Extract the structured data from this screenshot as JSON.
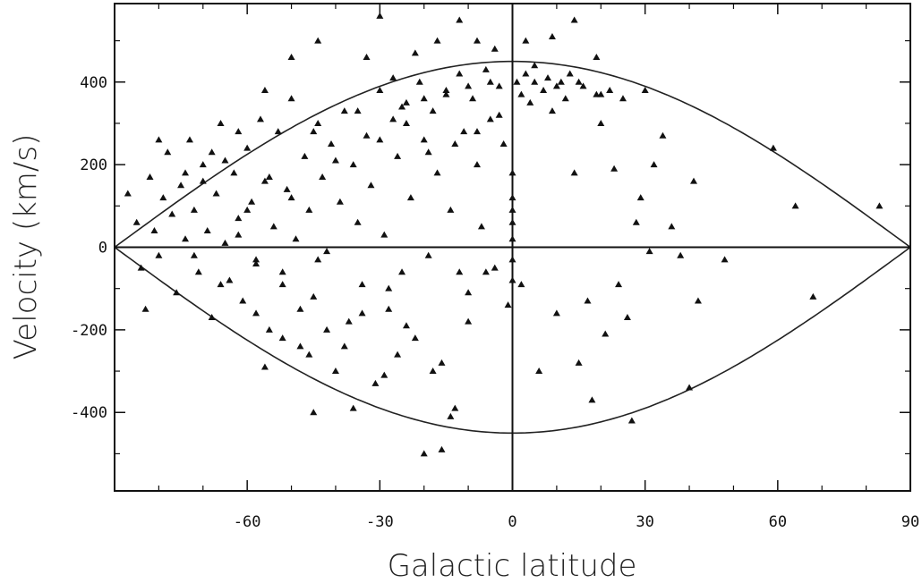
{
  "chart_data": {
    "type": "scatter",
    "xlabel": "Galactic latitude",
    "ylabel": "Velocity (km/s)",
    "xlim": [
      -90,
      90
    ],
    "ylim": [
      -590,
      590
    ],
    "x_ticks": [
      -60,
      -30,
      0,
      30,
      60,
      90
    ],
    "x_tick_labels": [
      "-60",
      "-30",
      "0",
      "30",
      "60",
      "90"
    ],
    "y_ticks": [
      -400,
      -200,
      0,
      200,
      400
    ],
    "y_tick_labels": [
      "-400",
      "-200",
      "0",
      "200",
      "400"
    ],
    "grid": false,
    "marker": "triangle",
    "color": "#111111",
    "envelope": {
      "amplitude": 450,
      "description_shown": "curves +/- V cos(b)"
    },
    "reference_lines": {
      "x": 0,
      "y": 0
    },
    "points": [
      [
        -87,
        130
      ],
      [
        -85,
        60
      ],
      [
        -84,
        -50
      ],
      [
        -83,
        -150
      ],
      [
        -82,
        170
      ],
      [
        -81,
        40
      ],
      [
        -80,
        -20
      ],
      [
        -79,
        120
      ],
      [
        -78,
        230
      ],
      [
        -77,
        80
      ],
      [
        -76,
        -110
      ],
      [
        -75,
        150
      ],
      [
        -74,
        20
      ],
      [
        -73,
        260
      ],
      [
        -72,
        90
      ],
      [
        -71,
        -60
      ],
      [
        -70,
        200
      ],
      [
        -69,
        40
      ],
      [
        -68,
        -170
      ],
      [
        -67,
        130
      ],
      [
        -66,
        300
      ],
      [
        -65,
        10
      ],
      [
        -64,
        -80
      ],
      [
        -63,
        180
      ],
      [
        -62,
        70
      ],
      [
        -61,
        -130
      ],
      [
        -60,
        240
      ],
      [
        -59,
        110
      ],
      [
        -58,
        -30
      ],
      [
        -57,
        310
      ],
      [
        -56,
        160
      ],
      [
        -55,
        -200
      ],
      [
        -54,
        50
      ],
      [
        -53,
        280
      ],
      [
        -52,
        -60
      ],
      [
        -51,
        140
      ],
      [
        -50,
        360
      ],
      [
        -49,
        20
      ],
      [
        -48,
        -240
      ],
      [
        -47,
        220
      ],
      [
        -46,
        90
      ],
      [
        -45,
        -120
      ],
      [
        -44,
        300
      ],
      [
        -43,
        170
      ],
      [
        -42,
        -10
      ],
      [
        -41,
        250
      ],
      [
        -40,
        -300
      ],
      [
        -39,
        110
      ],
      [
        -38,
        330
      ],
      [
        -37,
        -180
      ],
      [
        -36,
        200
      ],
      [
        -35,
        60
      ],
      [
        -34,
        -90
      ],
      [
        -33,
        270
      ],
      [
        -32,
        150
      ],
      [
        -31,
        -330
      ],
      [
        -30,
        380
      ],
      [
        -29,
        30
      ],
      [
        -28,
        -150
      ],
      [
        -27,
        310
      ],
      [
        -26,
        220
      ],
      [
        -25,
        -60
      ],
      [
        -24,
        350
      ],
      [
        -23,
        120
      ],
      [
        -22,
        -220
      ],
      [
        -21,
        400
      ],
      [
        -20,
        260
      ],
      [
        -19,
        -20
      ],
      [
        -18,
        330
      ],
      [
        -17,
        180
      ],
      [
        -16,
        -280
      ],
      [
        -15,
        370
      ],
      [
        -14,
        90
      ],
      [
        -13,
        -390
      ],
      [
        -12,
        420
      ],
      [
        -11,
        280
      ],
      [
        -10,
        -110
      ],
      [
        -9,
        360
      ],
      [
        -8,
        200
      ],
      [
        -7,
        50
      ],
      [
        -6,
        430
      ],
      [
        -5,
        310
      ],
      [
        -4,
        -50
      ],
      [
        -3,
        390
      ],
      [
        -2,
        250
      ],
      [
        -1,
        -140
      ],
      [
        0,
        120
      ],
      [
        0,
        60
      ],
      [
        0,
        20
      ],
      [
        0,
        -30
      ],
      [
        0,
        -80
      ],
      [
        0,
        180
      ],
      [
        0,
        90
      ],
      [
        1,
        400
      ],
      [
        2,
        370
      ],
      [
        3,
        420
      ],
      [
        4,
        350
      ],
      [
        5,
        440
      ],
      [
        6,
        -300
      ],
      [
        7,
        380
      ],
      [
        8,
        410
      ],
      [
        9,
        330
      ],
      [
        10,
        -160
      ],
      [
        11,
        400
      ],
      [
        12,
        360
      ],
      [
        13,
        420
      ],
      [
        14,
        180
      ],
      [
        15,
        -280
      ],
      [
        16,
        390
      ],
      [
        17,
        -130
      ],
      [
        18,
        -370
      ],
      [
        19,
        370
      ],
      [
        20,
        300
      ],
      [
        21,
        -210
      ],
      [
        22,
        380
      ],
      [
        23,
        190
      ],
      [
        24,
        -90
      ],
      [
        25,
        360
      ],
      [
        26,
        -170
      ],
      [
        27,
        -420
      ],
      [
        28,
        60
      ],
      [
        29,
        120
      ],
      [
        30,
        380
      ],
      [
        31,
        -10
      ],
      [
        32,
        200
      ],
      [
        34,
        270
      ],
      [
        36,
        50
      ],
      [
        38,
        -20
      ],
      [
        40,
        -340
      ],
      [
        41,
        160
      ],
      [
        42,
        -130
      ],
      [
        48,
        -30
      ],
      [
        59,
        240
      ],
      [
        64,
        100
      ],
      [
        68,
        -120
      ],
      [
        83,
        100
      ],
      [
        -70,
        160
      ],
      [
        -65,
        210
      ],
      [
        -60,
        90
      ],
      [
        -55,
        170
      ],
      [
        -50,
        120
      ],
      [
        -45,
        280
      ],
      [
        -40,
        210
      ],
      [
        -35,
        330
      ],
      [
        -30,
        260
      ],
      [
        -25,
        340
      ],
      [
        -20,
        360
      ],
      [
        -15,
        380
      ],
      [
        -10,
        390
      ],
      [
        -5,
        400
      ],
      [
        5,
        400
      ],
      [
        10,
        390
      ],
      [
        15,
        400
      ],
      [
        20,
        370
      ],
      [
        -62,
        30
      ],
      [
        -58,
        -40
      ],
      [
        -52,
        -90
      ],
      [
        -48,
        -150
      ],
      [
        -44,
        -30
      ],
      [
        -38,
        -240
      ],
      [
        -34,
        -160
      ],
      [
        -28,
        -100
      ],
      [
        -24,
        -190
      ],
      [
        -18,
        -300
      ],
      [
        -14,
        -410
      ],
      [
        -12,
        -60
      ],
      [
        -20,
        -500
      ],
      [
        -16,
        -490
      ],
      [
        -45,
        -400
      ],
      [
        -36,
        -390
      ],
      [
        -29,
        -310
      ],
      [
        -56,
        -290
      ],
      [
        -46,
        -260
      ],
      [
        -33,
        460
      ],
      [
        -27,
        410
      ],
      [
        -22,
        470
      ],
      [
        -17,
        500
      ],
      [
        -12,
        550
      ],
      [
        -8,
        500
      ],
      [
        -4,
        480
      ],
      [
        3,
        500
      ],
      [
        9,
        510
      ],
      [
        14,
        550
      ],
      [
        19,
        460
      ],
      [
        -44,
        500
      ],
      [
        -30,
        560
      ],
      [
        -50,
        460
      ],
      [
        -56,
        380
      ],
      [
        -62,
        280
      ],
      [
        -68,
        230
      ],
      [
        -74,
        180
      ],
      [
        -80,
        260
      ],
      [
        -72,
        -20
      ],
      [
        -66,
        -90
      ],
      [
        -58,
        -160
      ],
      [
        -52,
        -220
      ],
      [
        -42,
        -200
      ],
      [
        -26,
        -260
      ],
      [
        -10,
        -180
      ],
      [
        -6,
        -60
      ],
      [
        2,
        -90
      ],
      [
        -3,
        320
      ],
      [
        -8,
        280
      ],
      [
        -13,
        250
      ],
      [
        -19,
        230
      ],
      [
        -24,
        300
      ]
    ]
  }
}
